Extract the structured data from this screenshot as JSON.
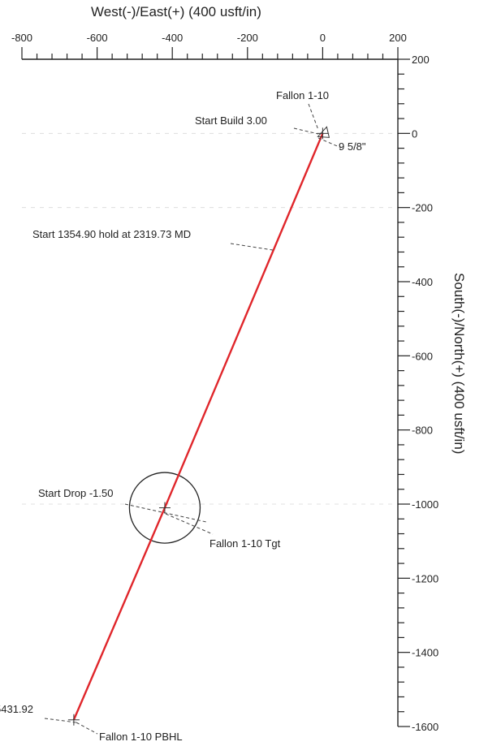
{
  "chart_data": {
    "type": "line",
    "xlabel": "West(-)/East(+) (400 usft/in)",
    "ylabel": "South(-)/North(+) (400 usft/in)",
    "xlim": [
      -800,
      200
    ],
    "ylim": [
      -1600,
      200
    ],
    "x_ticks": [
      "-800",
      "-600",
      "-400",
      "-200",
      "0",
      "200"
    ],
    "y_ticks": [
      "200",
      "0",
      "-200",
      "-400",
      "-600",
      "-800",
      "-1000",
      "-1200",
      "-1400",
      "-1600"
    ],
    "series": [
      {
        "color": "#e0262b",
        "x": [
          0,
          -420,
          -662
        ],
        "y": [
          0,
          -1010,
          -1582
        ]
      }
    ],
    "target_circle": {
      "x": -420,
      "y": -1010,
      "radius": 100
    },
    "annotations": [
      {
        "text": "Fallon 1-10"
      },
      {
        "text": "Start Build 3.00"
      },
      {
        "text": "9 5/8\""
      },
      {
        "text": "Start 1354.90 hold at 2319.73 MD"
      },
      {
        "text": "Start Drop -1.50"
      },
      {
        "text": "Fallon 1-10 Tgt"
      },
      {
        "text": "5431.92"
      },
      {
        "text": "Fallon 1-10 PBHL"
      }
    ]
  }
}
